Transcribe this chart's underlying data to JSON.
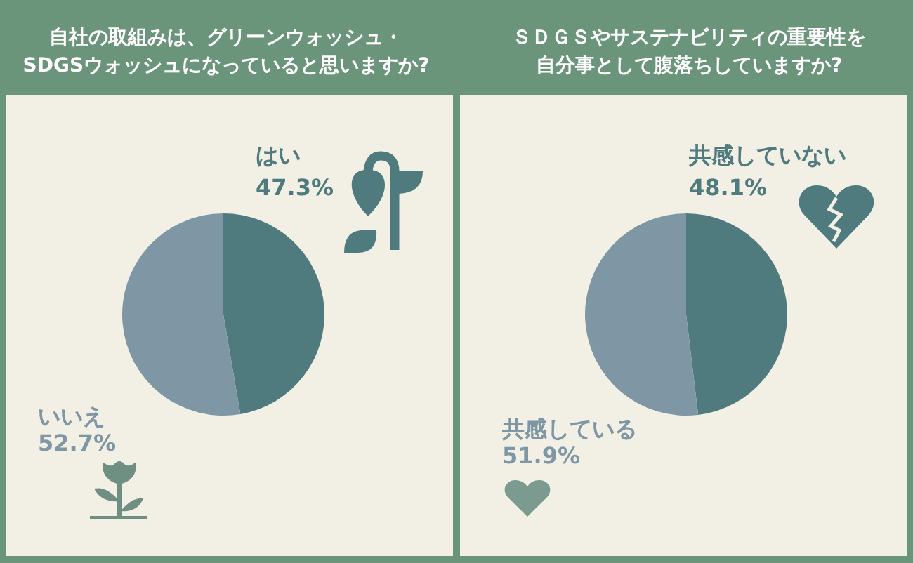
{
  "chart_data": [
    {
      "type": "pie",
      "title": "自社の取組みは、グリーンウォッシュ・SDGSウォッシュになっていると思いますか?",
      "categories": [
        "はい",
        "いいえ"
      ],
      "values": [
        47.3,
        52.7
      ],
      "colors": [
        "#4f7b7e",
        "#7f97a5"
      ],
      "value_labels": [
        "47.3%",
        "52.7%"
      ]
    },
    {
      "type": "pie",
      "title": "ＳＤＧＳやサステナビリティの重要性を自分事として腹落ちしていますか?",
      "categories": [
        "共感していない",
        "共感している"
      ],
      "values": [
        48.1,
        51.9
      ],
      "colors": [
        "#4f7b7e",
        "#7f97a5"
      ],
      "value_labels": [
        "48.1%",
        "51.9%"
      ]
    }
  ]
}
